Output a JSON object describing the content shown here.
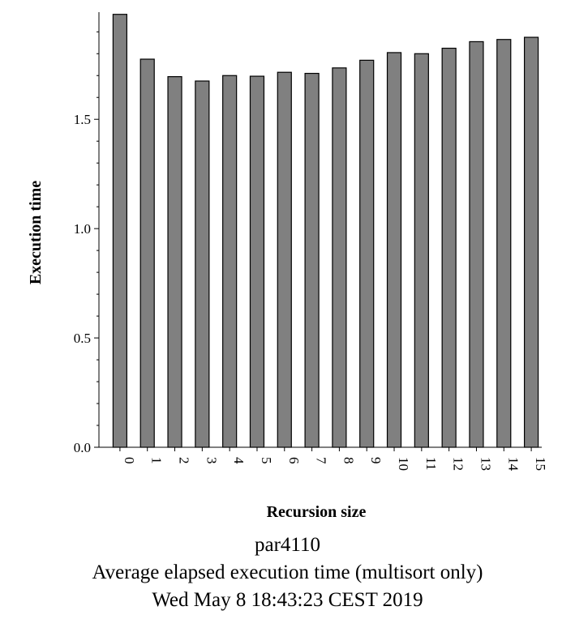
{
  "chart_data": {
    "type": "bar",
    "categories": [
      "0",
      "1",
      "2",
      "3",
      "4",
      "5",
      "6",
      "7",
      "8",
      "9",
      "10",
      "11",
      "12",
      "13",
      "14",
      "15"
    ],
    "values": [
      1.98,
      1.775,
      1.695,
      1.675,
      1.7,
      1.697,
      1.715,
      1.71,
      1.735,
      1.77,
      1.805,
      1.8,
      1.825,
      1.855,
      1.865,
      1.875
    ],
    "xlabel": "Recursion size",
    "ylabel": "Execution time",
    "ylim": [
      0,
      1.99
    ],
    "yticks": [
      "0.0",
      "0.5",
      "1.0",
      "1.5"
    ],
    "ytick_values": [
      0,
      0.5,
      1.0,
      1.5
    ],
    "bar_color": "#808080",
    "grid": false
  },
  "caption": {
    "line1": "par4110",
    "line2": "Average elapsed execution time (multisort only)",
    "line3": "Wed May 8 18:43:23 CEST 2019"
  }
}
